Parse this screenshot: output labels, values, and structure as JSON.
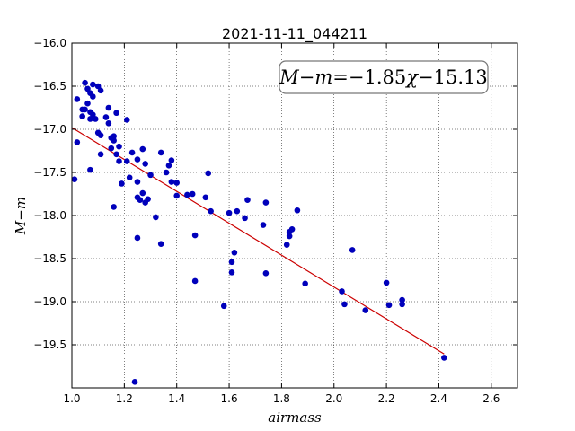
{
  "chart_data": {
    "type": "scatter",
    "title": "2021-11-11_044211",
    "xlabel": "airmass",
    "ylabel": "M−m",
    "xlim": [
      1.0,
      2.7
    ],
    "ylim": [
      -20.0,
      -16.0
    ],
    "y_inverted": true,
    "grid": true,
    "xticks": [
      1.0,
      1.2,
      1.4,
      1.6,
      1.8,
      2.0,
      2.2,
      2.4,
      2.6
    ],
    "yticks": [
      -16.0,
      -16.5,
      -17.0,
      -17.5,
      -18.0,
      -18.5,
      -19.0,
      -19.5
    ],
    "xtick_labels": [
      "1.0",
      "1.2",
      "1.4",
      "1.6",
      "1.8",
      "2.0",
      "2.2",
      "2.4",
      "2.6"
    ],
    "ytick_labels": [
      "−16.0",
      "−16.5",
      "−17.0",
      "−17.5",
      "−18.0",
      "−18.5",
      "−19.0",
      "−19.5"
    ],
    "annotation": {
      "lhs": "M−m",
      "rhs_value": "−1.85",
      "rhs_var": "χ",
      "rhs_const": "−15.13"
    },
    "fit": {
      "slope": -1.85,
      "intercept": -15.13,
      "x_range": [
        1.0,
        2.42
      ],
      "color": "#cc0000"
    },
    "point_color": "#0000bb",
    "points": [
      {
        "x": 1.01,
        "y": -17.58
      },
      {
        "x": 1.02,
        "y": -17.15
      },
      {
        "x": 1.02,
        "y": -16.65
      },
      {
        "x": 1.04,
        "y": -16.77
      },
      {
        "x": 1.04,
        "y": -16.85
      },
      {
        "x": 1.05,
        "y": -16.46
      },
      {
        "x": 1.05,
        "y": -16.77
      },
      {
        "x": 1.06,
        "y": -16.7
      },
      {
        "x": 1.06,
        "y": -16.53
      },
      {
        "x": 1.07,
        "y": -16.58
      },
      {
        "x": 1.07,
        "y": -16.8
      },
      {
        "x": 1.07,
        "y": -16.88
      },
      {
        "x": 1.08,
        "y": -16.48
      },
      {
        "x": 1.08,
        "y": -16.62
      },
      {
        "x": 1.08,
        "y": -16.83
      },
      {
        "x": 1.07,
        "y": -17.47
      },
      {
        "x": 1.09,
        "y": -16.88
      },
      {
        "x": 1.1,
        "y": -16.5
      },
      {
        "x": 1.1,
        "y": -17.04
      },
      {
        "x": 1.11,
        "y": -16.55
      },
      {
        "x": 1.11,
        "y": -17.07
      },
      {
        "x": 1.11,
        "y": -17.29
      },
      {
        "x": 1.13,
        "y": -16.86
      },
      {
        "x": 1.14,
        "y": -16.93
      },
      {
        "x": 1.14,
        "y": -16.75
      },
      {
        "x": 1.15,
        "y": -17.1
      },
      {
        "x": 1.15,
        "y": -17.22
      },
      {
        "x": 1.16,
        "y": -17.08
      },
      {
        "x": 1.16,
        "y": -17.13
      },
      {
        "x": 1.17,
        "y": -16.81
      },
      {
        "x": 1.17,
        "y": -17.29
      },
      {
        "x": 1.18,
        "y": -17.37
      },
      {
        "x": 1.18,
        "y": -17.2
      },
      {
        "x": 1.16,
        "y": -17.9
      },
      {
        "x": 1.19,
        "y": -17.63
      },
      {
        "x": 1.21,
        "y": -17.37
      },
      {
        "x": 1.21,
        "y": -16.89
      },
      {
        "x": 1.22,
        "y": -17.56
      },
      {
        "x": 1.23,
        "y": -17.27
      },
      {
        "x": 1.24,
        "y": -19.93
      },
      {
        "x": 1.25,
        "y": -17.35
      },
      {
        "x": 1.25,
        "y": -17.61
      },
      {
        "x": 1.25,
        "y": -17.79
      },
      {
        "x": 1.25,
        "y": -18.26
      },
      {
        "x": 1.26,
        "y": -17.82
      },
      {
        "x": 1.27,
        "y": -17.23
      },
      {
        "x": 1.27,
        "y": -17.74
      },
      {
        "x": 1.28,
        "y": -17.4
      },
      {
        "x": 1.28,
        "y": -17.85
      },
      {
        "x": 1.29,
        "y": -17.81
      },
      {
        "x": 1.3,
        "y": -17.53
      },
      {
        "x": 1.32,
        "y": -18.02
      },
      {
        "x": 1.34,
        "y": -18.33
      },
      {
        "x": 1.34,
        "y": -17.27
      },
      {
        "x": 1.36,
        "y": -17.5
      },
      {
        "x": 1.37,
        "y": -17.42
      },
      {
        "x": 1.38,
        "y": -17.36
      },
      {
        "x": 1.38,
        "y": -17.61
      },
      {
        "x": 1.4,
        "y": -17.62
      },
      {
        "x": 1.4,
        "y": -17.77
      },
      {
        "x": 1.44,
        "y": -17.76
      },
      {
        "x": 1.46,
        "y": -17.75
      },
      {
        "x": 1.47,
        "y": -18.23
      },
      {
        "x": 1.47,
        "y": -18.76
      },
      {
        "x": 1.51,
        "y": -17.79
      },
      {
        "x": 1.52,
        "y": -17.51
      },
      {
        "x": 1.53,
        "y": -17.95
      },
      {
        "x": 1.58,
        "y": -19.05
      },
      {
        "x": 1.6,
        "y": -17.97
      },
      {
        "x": 1.61,
        "y": -18.66
      },
      {
        "x": 1.61,
        "y": -18.54
      },
      {
        "x": 1.62,
        "y": -18.43
      },
      {
        "x": 1.63,
        "y": -17.95
      },
      {
        "x": 1.66,
        "y": -18.03
      },
      {
        "x": 1.67,
        "y": -17.82
      },
      {
        "x": 1.73,
        "y": -18.11
      },
      {
        "x": 1.74,
        "y": -18.67
      },
      {
        "x": 1.74,
        "y": -17.85
      },
      {
        "x": 1.82,
        "y": -18.34
      },
      {
        "x": 1.83,
        "y": -18.19
      },
      {
        "x": 1.83,
        "y": -18.24
      },
      {
        "x": 1.84,
        "y": -18.16
      },
      {
        "x": 1.86,
        "y": -17.94
      },
      {
        "x": 1.89,
        "y": -18.79
      },
      {
        "x": 2.03,
        "y": -18.88
      },
      {
        "x": 2.04,
        "y": -19.03
      },
      {
        "x": 2.07,
        "y": -18.4
      },
      {
        "x": 2.12,
        "y": -19.1
      },
      {
        "x": 2.2,
        "y": -18.78
      },
      {
        "x": 2.21,
        "y": -19.04
      },
      {
        "x": 2.26,
        "y": -18.98
      },
      {
        "x": 2.26,
        "y": -19.03
      },
      {
        "x": 2.42,
        "y": -19.65
      }
    ]
  }
}
